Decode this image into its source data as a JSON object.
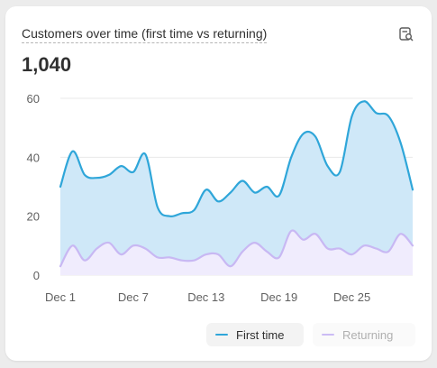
{
  "card": {
    "title": "Customers over time (first time vs returning)",
    "total": "1,040",
    "icon": "explore-report-icon"
  },
  "chart_data": {
    "type": "area",
    "x_tick_labels": [
      "Dec 1",
      "Dec 7",
      "Dec 13",
      "Dec 19",
      "Dec 25"
    ],
    "y_tick_labels": [
      "0",
      "20",
      "40",
      "60"
    ],
    "ylim": [
      0,
      60
    ],
    "grid": true,
    "legend_position": "bottom-right",
    "series": [
      {
        "name": "First time",
        "color": "#2fa6d9",
        "fill": "#cfe8f8",
        "values": [
          30,
          42,
          34,
          33,
          34,
          37,
          35,
          41,
          23,
          20,
          21,
          22,
          29,
          25,
          28,
          32,
          28,
          30,
          27,
          40,
          48,
          47,
          37,
          35,
          54,
          59,
          55,
          54,
          45,
          29
        ]
      },
      {
        "name": "Returning",
        "color": "#c8b8f3",
        "fill": "#f0ecfd",
        "values": [
          3,
          10,
          5,
          9,
          11,
          7,
          10,
          9,
          6,
          6,
          5,
          5,
          7,
          7,
          3,
          8,
          11,
          8,
          6,
          15,
          12,
          14,
          9,
          9,
          7,
          10,
          9,
          8,
          14,
          10
        ]
      }
    ]
  },
  "legend": {
    "first_time": "First time",
    "returning": "Returning"
  }
}
